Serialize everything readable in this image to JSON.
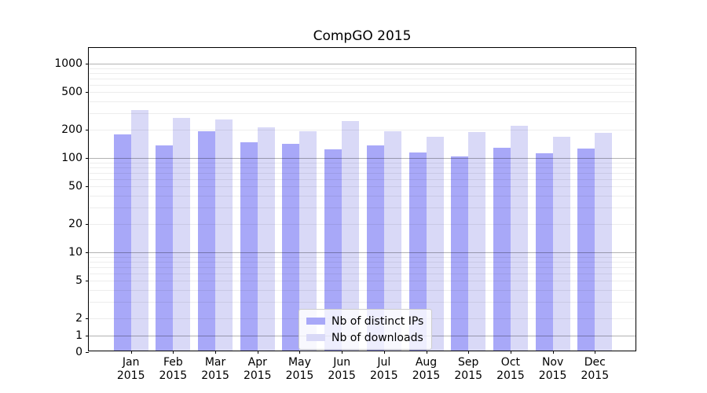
{
  "title": "CompGO 2015",
  "chart_data": {
    "type": "bar",
    "title": "CompGO 2015",
    "x_year": "2015",
    "months": [
      "Jan",
      "Feb",
      "Mar",
      "Apr",
      "May",
      "Jun",
      "Jul",
      "Aug",
      "Sep",
      "Oct",
      "Nov",
      "Dec"
    ],
    "categories": [
      "Jan 2015",
      "Feb 2015",
      "Mar 2015",
      "Apr 2015",
      "May 2015",
      "Jun 2015",
      "Jul 2015",
      "Aug 2015",
      "Sep 2015",
      "Oct 2015",
      "Nov 2015",
      "Dec 2015"
    ],
    "series": [
      {
        "name": "Nb of distinct IPs",
        "color": "#a8a8f8",
        "values": [
          172,
          130,
          184,
          142,
          135,
          120,
          131,
          110,
          100,
          124,
          108,
          122
        ]
      },
      {
        "name": "Nb of downloads",
        "color": "#d9d9f7",
        "values": [
          310,
          255,
          245,
          202,
          185,
          236,
          185,
          162,
          181,
          211,
          162,
          180
        ]
      }
    ],
    "yscale": "symlog",
    "ylim": [
      0,
      1450
    ],
    "y_ticks": [
      0,
      1,
      2,
      5,
      10,
      20,
      50,
      100,
      200,
      500,
      1000
    ],
    "y_major_gridlines": [
      1,
      10,
      100,
      1000
    ],
    "y_minor_gridlines": [
      2,
      3,
      4,
      5,
      6,
      7,
      8,
      9,
      20,
      30,
      40,
      50,
      60,
      70,
      80,
      90,
      200,
      300,
      400,
      500,
      600,
      700,
      800,
      900
    ],
    "grid": true,
    "legend": {
      "position": "lower-center",
      "labels": [
        "Nb of distinct IPs",
        "Nb of downloads"
      ]
    },
    "colors": {
      "axis": "#000000",
      "major_grid": "rgba(0,0,0,0.30)",
      "minor_grid": "rgba(0,0,0,0.07)",
      "background": "#ffffff"
    }
  }
}
